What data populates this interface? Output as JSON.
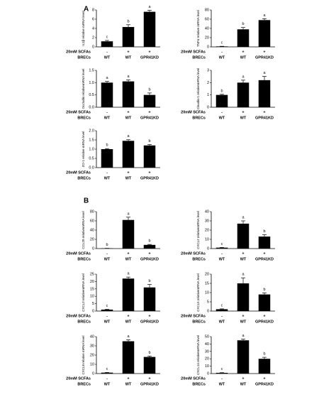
{
  "panel_labels": [
    "A",
    "B"
  ],
  "chart_data": [
    {
      "type": "bar",
      "panel": 0,
      "y_label": "IL1β relative mRNA level",
      "categories": [
        "WT",
        "WT",
        "GPR41KD"
      ],
      "treatment": [
        "-",
        "+",
        "+"
      ],
      "row_labels": [
        "20mM SCFAs",
        "BRECs"
      ],
      "values": [
        1.2,
        4.3,
        7.6
      ],
      "errors": [
        0.2,
        0.5,
        0.3
      ],
      "letters": [
        "c",
        "b",
        "a"
      ],
      "color": "#000000",
      "ylim": [
        0,
        8
      ],
      "yticks": [
        0,
        2,
        4,
        6,
        8
      ]
    },
    {
      "type": "bar",
      "panel": 0,
      "y_label": "TNFα relative mRNA level",
      "categories": [
        "WT",
        "WT",
        "GPR41KD"
      ],
      "treatment": [
        "-",
        "+",
        "+"
      ],
      "row_labels": [
        "20mM SCFAs",
        "BRECs"
      ],
      "values": [
        1,
        38,
        58
      ],
      "errors": [
        0.3,
        4,
        3
      ],
      "letters": [
        "c",
        "b",
        "a"
      ],
      "color": "#000000",
      "ylim": [
        0,
        80
      ],
      "yticks": [
        0,
        20,
        40,
        60,
        80
      ]
    },
    {
      "type": "bar",
      "panel": 0,
      "y_label": "Occludin relativemRNA level",
      "categories": [
        "WT",
        "WT",
        "GPR41KD"
      ],
      "treatment": [
        "-",
        "+",
        "+"
      ],
      "row_labels": [
        "20mM SCFAs",
        "BRECs"
      ],
      "values": [
        1.0,
        1.05,
        0.5
      ],
      "errors": [
        0.05,
        0.06,
        0.08
      ],
      "letters": [
        "a",
        "a",
        "b"
      ],
      "color": "#000000",
      "ylim": [
        0,
        1.5
      ],
      "yticks": [
        {
          "value": 0,
          "label": "0.0"
        },
        0.5,
        {
          "value": 1,
          "label": "1.0"
        },
        1.5
      ]
    },
    {
      "type": "bar",
      "panel": 0,
      "y_label": "Claudin-1 relativemRNA level",
      "categories": [
        "WT",
        "WT",
        "GPR41KD"
      ],
      "treatment": [
        "-",
        "+",
        "+"
      ],
      "row_labels": [
        "20mM SCFAs",
        "BRECs"
      ],
      "values": [
        1.0,
        2.0,
        2.2
      ],
      "errors": [
        0.05,
        0.2,
        0.3
      ],
      "letters": [
        "b",
        "a",
        "a"
      ],
      "color": "#000000",
      "ylim": [
        0,
        3
      ],
      "yticks": [
        0,
        1,
        2,
        3
      ]
    },
    {
      "type": "bar",
      "panel": 0,
      "y_label": "ZO-1 relative mRNA level",
      "categories": [
        "WT",
        "WT",
        "GPR41KD"
      ],
      "treatment": [
        "-",
        "+",
        "+"
      ],
      "row_labels": [
        "20mM SCFAs",
        "BRECs"
      ],
      "values": [
        1.0,
        1.45,
        1.2
      ],
      "errors": [
        0.03,
        0.06,
        0.05
      ],
      "letters": [
        "b",
        "a",
        "b"
      ],
      "color": "#000000",
      "ylim": [
        0,
        2
      ],
      "yticks": [
        {
          "value": 0,
          "label": "0.0"
        },
        0.5,
        {
          "value": 1,
          "label": "1.0"
        },
        1.5,
        {
          "value": 2,
          "label": "2.0"
        }
      ]
    },
    {
      "type": "bar",
      "panel": 1,
      "y_label": "CCL20 relativemRNA level",
      "categories": [
        "WT",
        "WT",
        "GPR41KD"
      ],
      "treatment": [
        "-",
        "+",
        "+"
      ],
      "row_labels": [
        "20mM SCFAs",
        "BRECs"
      ],
      "values": [
        0.5,
        62,
        8
      ],
      "errors": [
        0.1,
        6,
        1
      ],
      "letters": [
        "b",
        "a",
        "b"
      ],
      "color": "#000000",
      "ylim": [
        0,
        80
      ],
      "yticks": [
        0,
        20,
        40,
        60,
        80
      ]
    },
    {
      "type": "bar",
      "panel": 1,
      "y_label": "CXCL2 relativemRNA level",
      "categories": [
        "WT",
        "WT",
        "GPR41KD"
      ],
      "treatment": [
        "-",
        "+",
        "+"
      ],
      "row_labels": [
        "20mM SCFAs",
        "BRECs"
      ],
      "values": [
        1,
        27,
        13
      ],
      "errors": [
        0.2,
        3,
        2
      ],
      "letters": [
        "c",
        "a",
        "b"
      ],
      "color": "#000000",
      "ylim": [
        0,
        40
      ],
      "yticks": [
        0,
        10,
        20,
        30,
        40
      ]
    },
    {
      "type": "bar",
      "panel": 1,
      "y_label": "CXCL3 relativemRNA level",
      "categories": [
        "WT",
        "WT",
        "GPR41KD"
      ],
      "treatment": [
        "-",
        "+",
        "+"
      ],
      "row_labels": [
        "20mM SCFAs",
        "BRECs"
      ],
      "values": [
        1,
        22,
        16
      ],
      "errors": [
        0.2,
        1,
        2
      ],
      "letters": [
        "c",
        "a",
        "b"
      ],
      "color": "#000000",
      "ylim": [
        0,
        25
      ],
      "yticks": [
        0,
        5,
        10,
        15,
        20,
        25
      ]
    },
    {
      "type": "bar",
      "panel": 1,
      "y_label": "CXCL5 relativemRNA level",
      "categories": [
        "WT",
        "WT",
        "GPR41KD"
      ],
      "treatment": [
        "-",
        "+",
        "+"
      ],
      "row_labels": [
        "20mM SCFAs",
        "BRECs"
      ],
      "values": [
        1,
        15,
        9
      ],
      "errors": [
        0.2,
        3,
        0.8
      ],
      "letters": [
        "c",
        "a",
        "b"
      ],
      "color": "#000000",
      "ylim": [
        0,
        20
      ],
      "yticks": [
        0,
        5,
        10,
        15,
        20
      ]
    },
    {
      "type": "bar",
      "panel": 1,
      "y_label": "CXCL8 relative mRNA level",
      "categories": [
        "WT",
        "WT",
        "GPR41KD"
      ],
      "treatment": [
        "-",
        "+",
        "+"
      ],
      "row_labels": [
        "20mM SCFAs",
        "BRECs"
      ],
      "values": [
        1,
        35,
        18
      ],
      "errors": [
        0.2,
        1.5,
        1
      ],
      "letters": [
        "c",
        "a",
        "b"
      ],
      "color": "#000000",
      "ylim": [
        0,
        40
      ],
      "yticks": [
        0,
        10,
        20,
        30,
        40
      ]
    },
    {
      "type": "bar",
      "panel": 1,
      "y_label": "CXCL14 relativemRNA level",
      "categories": [
        "WT",
        "WT",
        "GPR41KD"
      ],
      "treatment": [
        "-",
        "+",
        "+"
      ],
      "row_labels": [
        "20mM SCFAs",
        "BRECs"
      ],
      "values": [
        1,
        45,
        20
      ],
      "errors": [
        0.2,
        1.5,
        2
      ],
      "letters": [
        "c",
        "a",
        "b"
      ],
      "color": "#000000",
      "ylim": [
        0,
        50
      ],
      "yticks": [
        0,
        10,
        20,
        30,
        40,
        50
      ]
    }
  ]
}
